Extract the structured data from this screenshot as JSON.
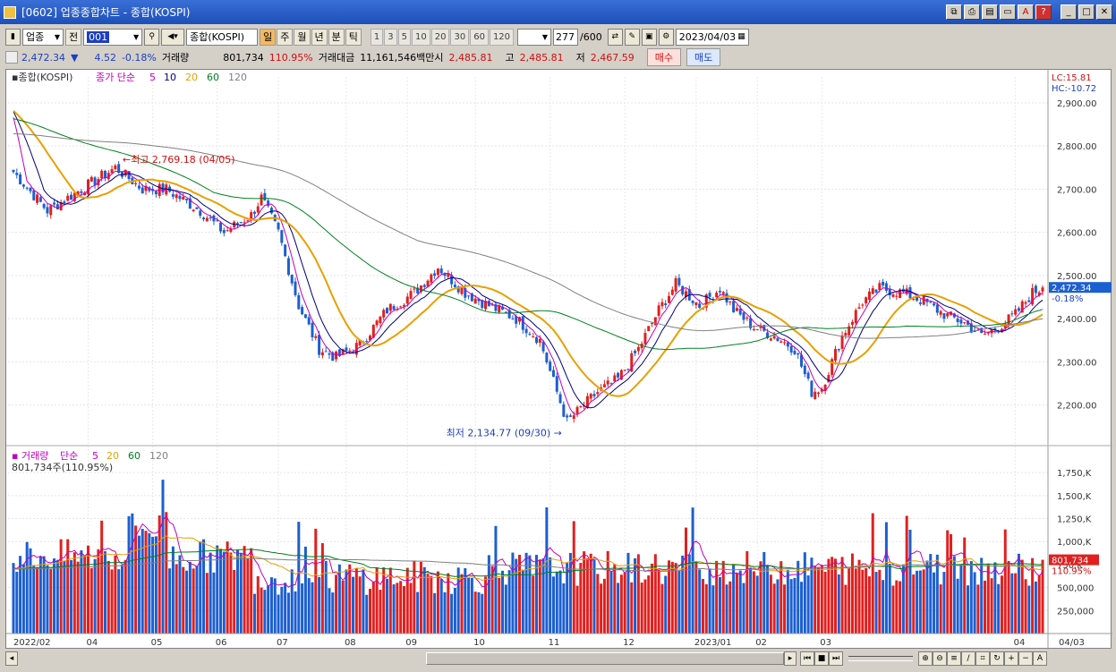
{
  "window": {
    "title": "[0602] 업종종합차트 - 종합(KOSPI)"
  },
  "toolbar": {
    "market": "업종",
    "prefix": "전",
    "code": "001",
    "index_name": "종합(KOSPI)",
    "periods": [
      "일",
      "주",
      "월",
      "년",
      "분",
      "틱"
    ],
    "numbers": [
      "1",
      "3",
      "5",
      "10",
      "20",
      "30",
      "60",
      "120"
    ],
    "count": "277",
    "count_max": "/600",
    "date": "2023/04/03"
  },
  "quote": {
    "price": "2,472.34",
    "arrow": "▼",
    "change": "4.52",
    "pct": "-0.18%",
    "vol_label": "거래량",
    "vol": "801,734",
    "vol_pct": "110.95%",
    "amt_label": "거래대금",
    "amt": "11,161,546백만",
    "open_label": "시",
    "open": "2,485.81",
    "high_label": "고",
    "high": "2,485.81",
    "low_label": "저",
    "low": "2,467.59",
    "buy": "매수",
    "sell": "매도"
  },
  "price_chart": {
    "name": "종합(KOSPI)",
    "legend_prefix": "종가 단순",
    "ma": [
      {
        "p": "5",
        "color": "#c000c0"
      },
      {
        "p": "10",
        "color": "#000080"
      },
      {
        "p": "20",
        "color": "#e8a000"
      },
      {
        "p": "60",
        "color": "#008020"
      },
      {
        "p": "120",
        "color": "#808080"
      }
    ],
    "lc": "LC:15.81",
    "hc": "HC:-10.72",
    "high_note": "최고 2,769.18 (04/05)",
    "low_note": "최저 2,134.77 (09/30)",
    "last_label": "2,472.34",
    "last_pct": "-0.18%"
  },
  "volume_chart": {
    "name": "거래량",
    "legend_prefix": "단순",
    "current": "801,734주(110.95%)",
    "last_label": "801,734",
    "last_pct": "110.95%"
  },
  "chart_data": [
    {
      "type": "candlestick",
      "y_ticks": [
        "2,900.00",
        "2,800.00",
        "2,700.00",
        "2,600.00",
        "2,500.00",
        "2,400.00",
        "2,300.00",
        "2,200.00"
      ],
      "ylim": [
        2110,
        2960
      ],
      "x_months": [
        "2022/02",
        "04",
        "05",
        "06",
        "07",
        "08",
        "09",
        "10",
        "11",
        "12",
        "2023/01",
        "02",
        "03",
        "04"
      ],
      "anchors": [
        [
          0,
          2740
        ],
        [
          10,
          2650
        ],
        [
          20,
          2700
        ],
        [
          30,
          2750
        ],
        [
          38,
          2700
        ],
        [
          45,
          2700
        ],
        [
          55,
          2650
        ],
        [
          62,
          2600
        ],
        [
          70,
          2640
        ],
        [
          73,
          2680
        ],
        [
          78,
          2600
        ],
        [
          84,
          2430
        ],
        [
          90,
          2330
        ],
        [
          95,
          2310
        ],
        [
          102,
          2340
        ],
        [
          110,
          2420
        ],
        [
          118,
          2460
        ],
        [
          125,
          2520
        ],
        [
          133,
          2460
        ],
        [
          140,
          2430
        ],
        [
          148,
          2400
        ],
        [
          155,
          2350
        ],
        [
          160,
          2230
        ],
        [
          163,
          2160
        ],
        [
          168,
          2200
        ],
        [
          172,
          2230
        ],
        [
          178,
          2260
        ],
        [
          184,
          2330
        ],
        [
          190,
          2420
        ],
        [
          195,
          2480
        ],
        [
          202,
          2430
        ],
        [
          208,
          2470
        ],
        [
          212,
          2420
        ],
        [
          218,
          2380
        ],
        [
          224,
          2360
        ],
        [
          230,
          2330
        ],
        [
          235,
          2230
        ],
        [
          238,
          2240
        ],
        [
          244,
          2360
        ],
        [
          250,
          2440
        ],
        [
          255,
          2470
        ],
        [
          262,
          2460
        ],
        [
          268,
          2440
        ],
        [
          274,
          2410
        ],
        [
          280,
          2390
        ],
        [
          285,
          2360
        ],
        [
          290,
          2380
        ],
        [
          295,
          2410
        ],
        [
          300,
          2460
        ],
        [
          303,
          2472
        ]
      ],
      "volume_ticks": [
        "1,750,K",
        "1,500,K",
        "1,250,K",
        "1,000,K",
        "750,K",
        "500,000",
        "250,000"
      ],
      "volume_max": 1800
    }
  ]
}
